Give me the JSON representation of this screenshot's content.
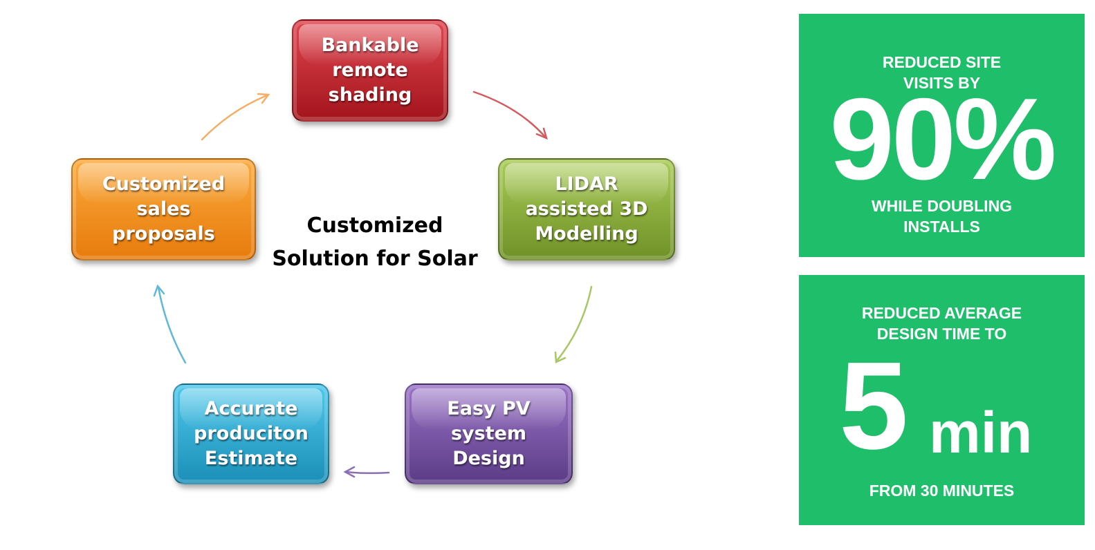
{
  "diagram": {
    "center_title": "Customized\nSolution for Solar",
    "nodes": [
      {
        "id": "shading",
        "label": "Bankable\nremote\nshading",
        "color": "#c62a31"
      },
      {
        "id": "lidar",
        "label": "LIDAR\nassisted  3D\nModelling",
        "color": "#8fb13c"
      },
      {
        "id": "pvdesign",
        "label": "Easy PV\nsystem\nDesign",
        "color": "#7552a6"
      },
      {
        "id": "estimate",
        "label": "Accurate\nproduciton\nEstimate",
        "color": "#30acd6"
      },
      {
        "id": "proposal",
        "label": "Customized\nsales\nproposals",
        "color": "#f4921e"
      }
    ],
    "arrows": [
      {
        "from": "shading",
        "to": "lidar",
        "color": "#d35a5e"
      },
      {
        "from": "lidar",
        "to": "pvdesign",
        "color": "#a6c764"
      },
      {
        "from": "pvdesign",
        "to": "estimate",
        "color": "#8a6fb5"
      },
      {
        "from": "estimate",
        "to": "proposal",
        "color": "#5db8d9"
      },
      {
        "from": "proposal",
        "to": "shading",
        "color": "#f6ad63"
      }
    ]
  },
  "stats": {
    "accent_color": "#1fbe6b",
    "site_visits": {
      "top_label": "REDUCED SITE\nVISITS BY",
      "value": "90%",
      "bottom_label": "WHILE DOUBLING\nINSTALLS"
    },
    "design_time": {
      "top_label": "REDUCED AVERAGE\nDESIGN TIME TO",
      "value": "5",
      "unit": "min",
      "bottom_label": "FROM 30 MINUTES"
    }
  }
}
